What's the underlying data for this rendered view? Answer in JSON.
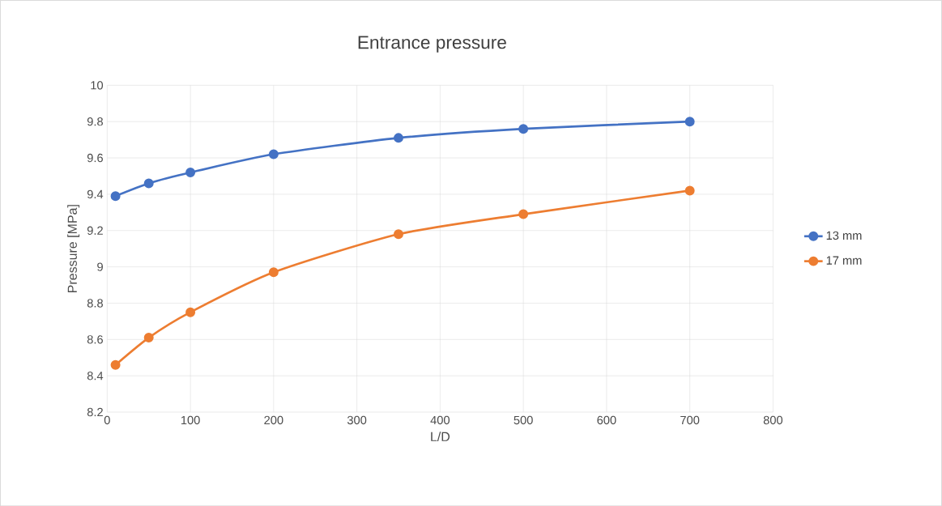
{
  "chart_data": {
    "type": "line",
    "title": "Entrance pressure",
    "xlabel": "L/D",
    "ylabel": "Pressure [MPa]",
    "x": [
      10,
      50,
      100,
      200,
      350,
      500,
      700
    ],
    "series": [
      {
        "name": "13 mm",
        "color": "#4472c4",
        "values": [
          9.39,
          9.46,
          9.52,
          9.62,
          9.71,
          9.76,
          9.8
        ]
      },
      {
        "name": "17 mm",
        "color": "#ed7d31",
        "values": [
          8.46,
          8.61,
          8.75,
          8.97,
          9.18,
          9.29,
          9.42
        ]
      }
    ],
    "xlim": [
      0,
      800
    ],
    "xticks": [
      0,
      100,
      200,
      300,
      400,
      500,
      600,
      700,
      800
    ],
    "ylim": [
      8.2,
      10
    ],
    "yticks": [
      8.2,
      8.4,
      8.6,
      8.8,
      9,
      9.2,
      9.4,
      9.6,
      9.8,
      10
    ],
    "grid": true,
    "legend": "right",
    "marker": "circle",
    "line_style": "solid"
  }
}
